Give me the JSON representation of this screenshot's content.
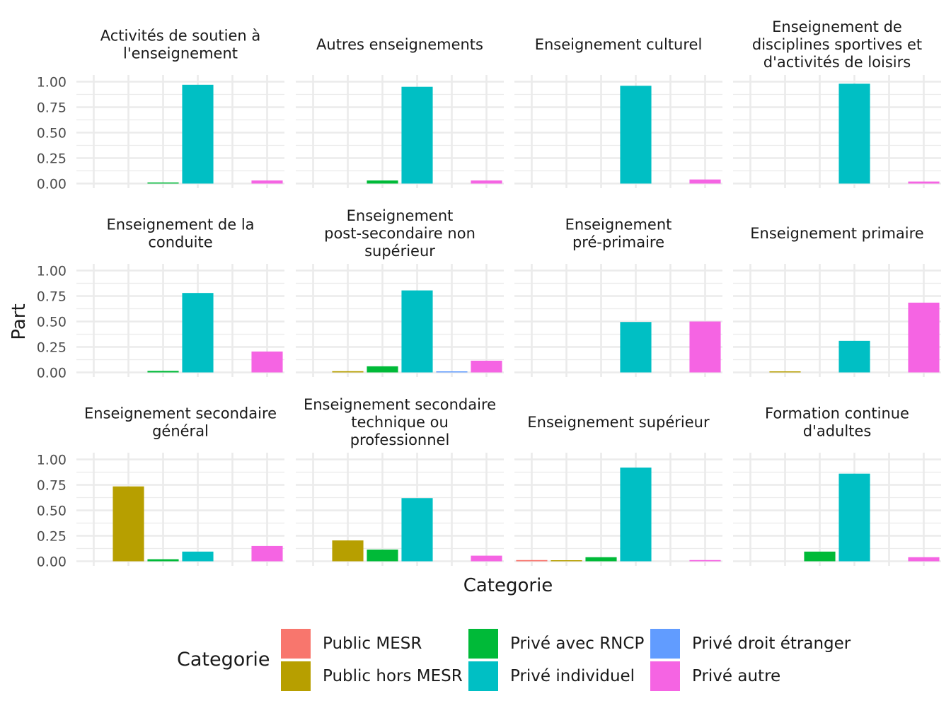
{
  "chart_data": {
    "type": "bar",
    "ylabel": "Part",
    "xlabel": "Categorie",
    "ylim": [
      0,
      1.05
    ],
    "yticks": [
      "0.00",
      "0.25",
      "0.50",
      "0.75",
      "1.00"
    ],
    "grid": true,
    "legend": {
      "title": "Categorie",
      "position": "bottom",
      "entries": [
        "Public MESR",
        "Public hors MESR",
        "Privé avec RNCP",
        "Privé individuel",
        "Privé droit étranger",
        "Privé autre"
      ]
    },
    "categories": [
      "Public MESR",
      "Public hors MESR",
      "Privé avec RNCP",
      "Privé individuel",
      "Privé droit étranger",
      "Privé autre"
    ],
    "colors": [
      "#F8766D",
      "#B79F00",
      "#00BA38",
      "#00BFC4",
      "#619CFF",
      "#F564E3"
    ],
    "panels": [
      {
        "title": [
          "Activités de soutien à",
          "l'enseignement"
        ],
        "values": [
          null,
          null,
          0.01,
          0.97,
          null,
          0.03
        ]
      },
      {
        "title": [
          "Autres enseignements"
        ],
        "values": [
          null,
          null,
          0.03,
          0.95,
          null,
          0.03
        ]
      },
      {
        "title": [
          "Enseignement culturel"
        ],
        "values": [
          null,
          null,
          null,
          0.96,
          null,
          0.04
        ]
      },
      {
        "title": [
          "Enseignement de",
          "disciplines sportives et",
          "d'activités de loisirs"
        ],
        "values": [
          null,
          null,
          null,
          0.98,
          null,
          0.02
        ]
      },
      {
        "title": [
          "Enseignement de la",
          "conduite"
        ],
        "values": [
          null,
          null,
          0.015,
          0.78,
          null,
          0.205
        ]
      },
      {
        "title": [
          "Enseignement",
          "post-secondaire non",
          "supérieur"
        ],
        "values": [
          null,
          0.012,
          0.06,
          0.805,
          0.008,
          0.115
        ]
      },
      {
        "title": [
          "Enseignement",
          "pré-primaire"
        ],
        "values": [
          null,
          null,
          null,
          0.495,
          null,
          0.5
        ]
      },
      {
        "title": [
          "Enseignement primaire"
        ],
        "values": [
          null,
          0.008,
          null,
          0.31,
          null,
          0.685
        ]
      },
      {
        "title": [
          "Enseignement secondaire",
          "général"
        ],
        "values": [
          null,
          0.735,
          0.02,
          0.095,
          null,
          0.15
        ]
      },
      {
        "title": [
          "Enseignement secondaire",
          "technique ou",
          "professionnel"
        ],
        "values": [
          null,
          0.205,
          0.115,
          0.62,
          null,
          0.055
        ]
      },
      {
        "title": [
          "Enseignement supérieur"
        ],
        "values": [
          0.012,
          0.007,
          0.04,
          0.92,
          null,
          0.012
        ]
      },
      {
        "title": [
          "Formation continue",
          "d'adultes"
        ],
        "values": [
          null,
          null,
          0.095,
          0.86,
          null,
          0.04
        ]
      }
    ]
  }
}
